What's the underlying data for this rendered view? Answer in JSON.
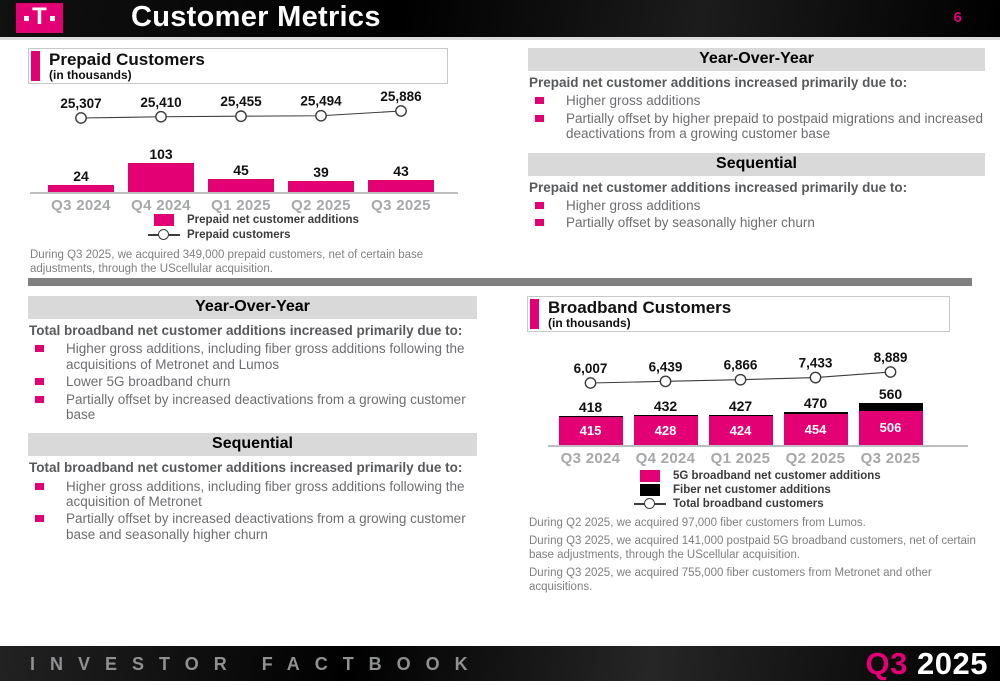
{
  "header": {
    "logo_letter": "T",
    "title": "Customer Metrics",
    "page_number": "6"
  },
  "commentary": {
    "prepaid_yoy": {
      "title": "Year-Over-Year",
      "intro": "Prepaid net customer additions increased primarily due to:",
      "bullets": [
        "Higher gross additions",
        "Partially offset by higher prepaid to postpaid migrations and increased deactivations from a growing customer base"
      ]
    },
    "prepaid_seq": {
      "title": "Sequential",
      "intro": "Prepaid net customer additions increased primarily due to:",
      "bullets": [
        "Higher gross additions",
        "Partially offset by seasonally higher churn"
      ]
    },
    "broadband_yoy": {
      "title": "Year-Over-Year",
      "intro": "Total broadband net customer additions increased primarily due to:",
      "bullets": [
        "Higher gross additions, including fiber gross additions following the acquisitions of Metronet and Lumos",
        "Lower 5G broadband churn",
        "Partially offset by increased deactivations from a growing customer base"
      ]
    },
    "broadband_seq": {
      "title": "Sequential",
      "intro": "Total broadband net customer additions increased primarily due to:",
      "bullets": [
        "Higher gross additions, including fiber gross additions following the acquisition of Metronet",
        "Partially offset by increased deactivations from a growing customer base and seasonally higher churn"
      ]
    }
  },
  "footnotes": {
    "prepaid": "During Q3 2025, we acquired 349,000 prepaid customers, net of certain base adjustments, through the UScellular acquisition.",
    "broadband": [
      "During Q2 2025, we acquired 97,000 fiber customers from Lumos.",
      "During Q3 2025, we acquired 141,000 postpaid 5G broadband customers, net of certain base adjustments, through the UScellular acquisition.",
      "During Q3 2025, we acquired 755,000 fiber customers from Metronet and other acquisitions."
    ]
  },
  "footer": {
    "left_text": "INVESTOR FACTBOOK",
    "quarter": "Q3",
    "year": "2025"
  },
  "colors": {
    "magenta": "#E20074",
    "banner_gray": "#D9D9D9",
    "axis_label_gray": "#A7A8AA",
    "body_text_gray": "#6D6E71",
    "divider_gray": "#808080"
  },
  "chart_data": [
    {
      "type": "bar",
      "title": "Prepaid Customers",
      "subtitle": "(in thousands)",
      "categories": [
        "Q3 2024",
        "Q4 2024",
        "Q1 2025",
        "Q2 2025",
        "Q3 2025"
      ],
      "series": [
        {
          "name": "Prepaid net customer additions",
          "type": "bar",
          "color": "#E20074",
          "values": [
            24,
            103,
            45,
            39,
            43
          ]
        },
        {
          "name": "Prepaid customers",
          "type": "line",
          "values": [
            25307,
            25410,
            25455,
            25494,
            25886
          ]
        }
      ],
      "bar_labels": [
        "24",
        "103",
        "45",
        "39",
        "43"
      ],
      "line_labels": [
        "25,307",
        "25,410",
        "25,455",
        "25,494",
        "25,886"
      ],
      "legend_position": "bottom",
      "grid": false
    },
    {
      "type": "bar",
      "title": "Broadband Customers",
      "subtitle": "(in thousands)",
      "categories": [
        "Q3 2024",
        "Q4 2024",
        "Q1 2025",
        "Q2 2025",
        "Q3 2025"
      ],
      "series": [
        {
          "name": "5G broadband net customer additions",
          "type": "bar",
          "color": "#E20074",
          "values": [
            415,
            428,
            424,
            454,
            506
          ]
        },
        {
          "name": "Fiber net customer additions",
          "type": "bar",
          "color": "#000000",
          "values": [
            3,
            4,
            3,
            16,
            54
          ]
        },
        {
          "name": "Total broadband customers",
          "type": "line",
          "values": [
            6007,
            6439,
            6866,
            7433,
            8889
          ]
        }
      ],
      "bar_labels": [
        "418",
        "432",
        "427",
        "470",
        "560"
      ],
      "inner_labels": [
        "415",
        "428",
        "424",
        "454",
        "506"
      ],
      "line_labels": [
        "6,007",
        "6,439",
        "6,866",
        "7,433",
        "8,889"
      ],
      "legend_position": "bottom",
      "grid": false
    }
  ]
}
